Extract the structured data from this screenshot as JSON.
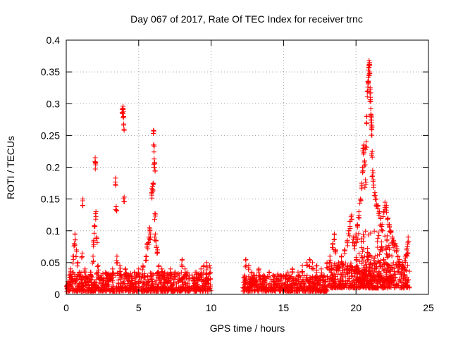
{
  "chart_data": {
    "type": "scatter",
    "title": "Day 067 of 2017, Rate Of TEC Index for receiver trnc",
    "xlabel": "GPS time / hours",
    "ylabel": "ROTI / TECUs",
    "xlim": [
      0,
      25
    ],
    "ylim": [
      0,
      0.4
    ],
    "xticks": [
      0,
      5,
      10,
      15,
      20,
      25
    ],
    "xtick_labels": [
      "0",
      "5",
      "10",
      "15",
      "20",
      "25"
    ],
    "yticks": [
      0,
      0.05,
      0.1,
      0.15,
      0.2,
      0.25,
      0.3,
      0.35,
      0.4
    ],
    "ytick_labels": [
      "0",
      "0.05",
      "0.1",
      "0.15",
      "0.2",
      "0.25",
      "0.3",
      "0.35",
      "0.4"
    ],
    "grid": true,
    "marker": "+",
    "color": "#ff0000",
    "series": [
      {
        "name": "ROTI",
        "points": [
          [
            0.1,
            0.02
          ],
          [
            0.2,
            0.03
          ],
          [
            0.3,
            0.04
          ],
          [
            0.4,
            0.025
          ],
          [
            0.5,
            0.06
          ],
          [
            0.55,
            0.08
          ],
          [
            0.6,
            0.095
          ],
          [
            0.7,
            0.07
          ],
          [
            0.8,
            0.05
          ],
          [
            0.9,
            0.035
          ],
          [
            1.0,
            0.03
          ],
          [
            1.1,
            0.065
          ],
          [
            1.15,
            0.15
          ],
          [
            1.3,
            0.04
          ],
          [
            1.5,
            0.028
          ],
          [
            1.7,
            0.035
          ],
          [
            1.85,
            0.06
          ],
          [
            1.9,
            0.085
          ],
          [
            1.95,
            0.108
          ],
          [
            2.0,
            0.215
          ],
          [
            2.02,
            0.208
          ],
          [
            2.05,
            0.13
          ],
          [
            2.1,
            0.09
          ],
          [
            2.2,
            0.045
          ],
          [
            2.4,
            0.03
          ],
          [
            2.6,
            0.025
          ],
          [
            2.8,
            0.032
          ],
          [
            3.0,
            0.03
          ],
          [
            3.2,
            0.04
          ],
          [
            3.4,
            0.183
          ],
          [
            3.45,
            0.138
          ],
          [
            3.5,
            0.06
          ],
          [
            3.7,
            0.045
          ],
          [
            3.9,
            0.292
          ],
          [
            3.92,
            0.296
          ],
          [
            3.95,
            0.288
          ],
          [
            3.97,
            0.268
          ],
          [
            4.0,
            0.153
          ],
          [
            4.1,
            0.04
          ],
          [
            4.3,
            0.03
          ],
          [
            4.5,
            0.028
          ],
          [
            4.7,
            0.035
          ],
          [
            5.0,
            0.04
          ],
          [
            5.3,
            0.045
          ],
          [
            5.5,
            0.06
          ],
          [
            5.6,
            0.08
          ],
          [
            5.7,
            0.09
          ],
          [
            5.75,
            0.105
          ],
          [
            5.8,
            0.095
          ],
          [
            5.9,
            0.16
          ],
          [
            5.95,
            0.17
          ],
          [
            6.0,
            0.175
          ],
          [
            6.02,
            0.258
          ],
          [
            6.05,
            0.235
          ],
          [
            6.07,
            0.213
          ],
          [
            6.1,
            0.2
          ],
          [
            6.12,
            0.127
          ],
          [
            6.15,
            0.095
          ],
          [
            6.2,
            0.085
          ],
          [
            6.3,
            0.07
          ],
          [
            6.4,
            0.045
          ],
          [
            6.6,
            0.04
          ],
          [
            6.8,
            0.035
          ],
          [
            7.0,
            0.03
          ],
          [
            7.2,
            0.04
          ],
          [
            7.5,
            0.035
          ],
          [
            7.8,
            0.03
          ],
          [
            8.0,
            0.055
          ],
          [
            8.2,
            0.04
          ],
          [
            8.5,
            0.03
          ],
          [
            8.8,
            0.025
          ],
          [
            9.0,
            0.035
          ],
          [
            9.3,
            0.04
          ],
          [
            9.5,
            0.045
          ],
          [
            9.7,
            0.05
          ],
          [
            9.9,
            0.045
          ],
          [
            12.3,
            0.03
          ],
          [
            12.4,
            0.055
          ],
          [
            12.6,
            0.045
          ],
          [
            12.8,
            0.035
          ],
          [
            13.0,
            0.03
          ],
          [
            13.3,
            0.04
          ],
          [
            13.6,
            0.03
          ],
          [
            14.0,
            0.035
          ],
          [
            14.3,
            0.03
          ],
          [
            14.6,
            0.032
          ],
          [
            15.0,
            0.03
          ],
          [
            15.3,
            0.035
          ],
          [
            15.6,
            0.04
          ],
          [
            16.0,
            0.035
          ],
          [
            16.3,
            0.045
          ],
          [
            16.6,
            0.05
          ],
          [
            16.8,
            0.055
          ],
          [
            17.0,
            0.05
          ],
          [
            17.3,
            0.045
          ],
          [
            17.6,
            0.04
          ],
          [
            18.0,
            0.05
          ],
          [
            18.2,
            0.06
          ],
          [
            18.4,
            0.08
          ],
          [
            18.5,
            0.095
          ],
          [
            18.6,
            0.07
          ],
          [
            18.8,
            0.05
          ],
          [
            19.0,
            0.06
          ],
          [
            19.2,
            0.07
          ],
          [
            19.4,
            0.085
          ],
          [
            19.5,
            0.1
          ],
          [
            19.6,
            0.115
          ],
          [
            19.7,
            0.125
          ],
          [
            19.8,
            0.09
          ],
          [
            19.9,
            0.08
          ],
          [
            20.0,
            0.095
          ],
          [
            20.1,
            0.11
          ],
          [
            20.2,
            0.13
          ],
          [
            20.3,
            0.15
          ],
          [
            20.4,
            0.175
          ],
          [
            20.45,
            0.2
          ],
          [
            20.5,
            0.23
          ],
          [
            20.55,
            0.235
          ],
          [
            20.6,
            0.21
          ],
          [
            20.65,
            0.18
          ],
          [
            20.7,
            0.24
          ],
          [
            20.75,
            0.28
          ],
          [
            20.8,
            0.32
          ],
          [
            20.82,
            0.335
          ],
          [
            20.85,
            0.345
          ],
          [
            20.88,
            0.36
          ],
          [
            20.9,
            0.368
          ],
          [
            20.92,
            0.362
          ],
          [
            20.95,
            0.35
          ],
          [
            20.98,
            0.325
          ],
          [
            21.0,
            0.31
          ],
          [
            21.02,
            0.292
          ],
          [
            21.05,
            0.28
          ],
          [
            21.08,
            0.27
          ],
          [
            21.1,
            0.262
          ],
          [
            21.12,
            0.225
          ],
          [
            21.15,
            0.195
          ],
          [
            21.2,
            0.18
          ],
          [
            21.3,
            0.16
          ],
          [
            21.4,
            0.15
          ],
          [
            21.5,
            0.14
          ],
          [
            21.6,
            0.13
          ],
          [
            21.7,
            0.12
          ],
          [
            21.8,
            0.11
          ],
          [
            21.9,
            0.13
          ],
          [
            22.0,
            0.145
          ],
          [
            22.1,
            0.14
          ],
          [
            22.2,
            0.12
          ],
          [
            22.3,
            0.11
          ],
          [
            22.4,
            0.1
          ],
          [
            22.5,
            0.09
          ],
          [
            22.6,
            0.085
          ],
          [
            22.7,
            0.08
          ],
          [
            22.8,
            0.075
          ],
          [
            22.9,
            0.06
          ],
          [
            23.0,
            0.055
          ],
          [
            23.2,
            0.05
          ],
          [
            23.4,
            0.06
          ],
          [
            23.5,
            0.07
          ],
          [
            23.55,
            0.075
          ],
          [
            23.6,
            0.09
          ]
        ],
        "bands": [
          {
            "x": [
              0.0,
              10.0
            ],
            "y": [
              0.005,
              0.035
            ]
          },
          {
            "x": [
              12.2,
              18.0
            ],
            "y": [
              0.005,
              0.03
            ]
          },
          {
            "x": [
              18.0,
              23.7
            ],
            "y": [
              0.01,
              0.05
            ]
          },
          {
            "x": [
              20.0,
              22.5
            ],
            "y": [
              0.02,
              0.1
            ]
          }
        ]
      }
    ]
  }
}
